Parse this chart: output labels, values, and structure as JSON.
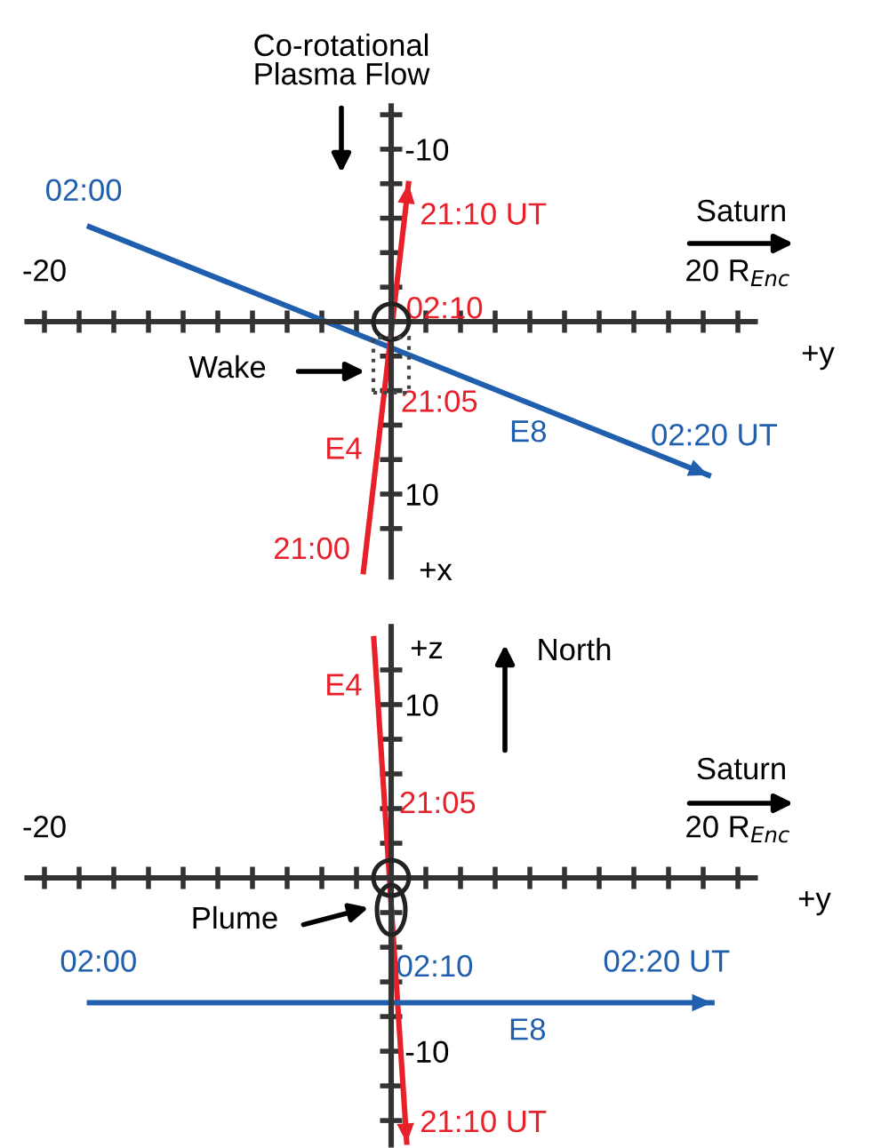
{
  "chart_data": [
    {
      "type": "line",
      "xlabel": "+y",
      "ylabel": "+x",
      "xlim": [
        -21,
        21
      ],
      "ylim": [
        14.8,
        -12.5
      ],
      "xticks": [
        {
          "value": -20,
          "label": "-20"
        },
        {
          "value": -18,
          "label": null
        },
        {
          "value": -16,
          "label": null
        },
        {
          "value": -14,
          "label": null
        },
        {
          "value": -12,
          "label": null
        },
        {
          "value": -10,
          "label": null
        },
        {
          "value": -8,
          "label": null
        },
        {
          "value": -6,
          "label": null
        },
        {
          "value": -4,
          "label": null
        },
        {
          "value": -2,
          "label": null
        },
        {
          "value": 0,
          "label": null
        },
        {
          "value": 2,
          "label": null
        },
        {
          "value": 4,
          "label": null
        },
        {
          "value": 6,
          "label": null
        },
        {
          "value": 8,
          "label": null
        },
        {
          "value": 10,
          "label": null
        },
        {
          "value": 12,
          "label": null
        },
        {
          "value": 14,
          "label": null
        },
        {
          "value": 16,
          "label": null
        },
        {
          "value": 18,
          "label": null
        },
        {
          "value": 20,
          "label": "20 R$_{Enc}$"
        }
      ],
      "yticks": [
        {
          "value": -12,
          "label": null
        },
        -10,
        {
          "value": -8,
          "label": null
        },
        {
          "value": -6,
          "label": null
        },
        {
          "value": -4,
          "label": null
        },
        {
          "value": -2,
          "label": null
        },
        {
          "value": 0,
          "label": null
        },
        {
          "value": 2,
          "label": null
        },
        {
          "value": 4,
          "label": null
        },
        {
          "value": 6,
          "label": null
        },
        {
          "value": 8,
          "label": null
        },
        10,
        {
          "value": 12,
          "label": null
        }
      ],
      "series": [
        {
          "color": "#1f5fad",
          "x": [
            -17.4,
            18.3
          ],
          "values": [
            -5.5,
            8.9
          ]
        },
        {
          "color": "#e8202a",
          "x": [
            -1.6,
            1.0
          ],
          "values": [
            14.5,
            -8.0
          ]
        }
      ],
      "annotations": [
        {
          "text": "02:00",
          "x": -17.4,
          "y": -5.5
        },
        {
          "text": "02:10",
          "x": 0,
          "y": 0.9
        },
        {
          "text": "02:20 UT",
          "x": 16.4,
          "y": 8.4
        },
        {
          "text": "E8",
          "x": 9,
          "y": 5.1
        },
        {
          "text": "21:00",
          "x": -1.5,
          "y": 13.3
        },
        {
          "text": "21:05",
          "x": -0.3,
          "y": 3.5
        },
        {
          "text": "21:10 UT",
          "x": 0.8,
          "y": -6.1
        },
        {
          "text": "E4",
          "x": -0.8,
          "y": 7.5
        },
        "Co-rotational\nPlasma Flow",
        "Saturn",
        "Wake"
      ],
      "grid": false,
      "legend": false,
      "marker": "none",
      "line_style": "solid"
    },
    {
      "type": "line",
      "xlabel": "+y",
      "ylabel": "+z",
      "xlim": [
        -21,
        21
      ],
      "ylim": [
        -15.4,
        14.5
      ],
      "xticks": [
        {
          "value": -20,
          "label": "-20"
        },
        {
          "value": -18,
          "label": null
        },
        {
          "value": -16,
          "label": null
        },
        {
          "value": -14,
          "label": null
        },
        {
          "value": -12,
          "label": null
        },
        {
          "value": -10,
          "label": null
        },
        {
          "value": -8,
          "label": null
        },
        {
          "value": -6,
          "label": null
        },
        {
          "value": -4,
          "label": null
        },
        {
          "value": -2,
          "label": null
        },
        {
          "value": 0,
          "label": null
        },
        {
          "value": 2,
          "label": null
        },
        {
          "value": 4,
          "label": null
        },
        {
          "value": 6,
          "label": null
        },
        {
          "value": 8,
          "label": null
        },
        {
          "value": 10,
          "label": null
        },
        {
          "value": 12,
          "label": null
        },
        {
          "value": 14,
          "label": null
        },
        {
          "value": 16,
          "label": null
        },
        {
          "value": 18,
          "label": null
        },
        {
          "value": 20,
          "label": "20 R$_{Enc}$"
        }
      ],
      "yticks": [
        {
          "value": -14,
          "label": null
        },
        {
          "value": -12,
          "label": null
        },
        -10,
        {
          "value": -8,
          "label": null
        },
        {
          "value": -6,
          "label": null
        },
        {
          "value": -4,
          "label": null
        },
        {
          "value": -2,
          "label": null
        },
        {
          "value": 0,
          "label": null
        },
        {
          "value": 2,
          "label": null
        },
        {
          "value": 4,
          "label": null
        },
        {
          "value": 6,
          "label": null
        },
        {
          "value": 8,
          "label": null
        },
        10,
        {
          "value": 12,
          "label": null
        }
      ],
      "series": [
        {
          "color": "#e8202a",
          "x": [
            -1.0,
            0.9
          ],
          "values": [
            13.8,
            -15.3
          ]
        },
        {
          "color": "#1f5fad",
          "x": [
            -17.4,
            18.5
          ],
          "values": [
            -7.2,
            -7.2
          ]
        }
      ],
      "annotations": [
        {
          "text": "E4",
          "x": -0.8,
          "y": 11
        },
        {
          "text": "21:05",
          "x": -0.4,
          "y": 4.2
        },
        {
          "text": "21:10 UT",
          "x": 0.8,
          "y": -14.2
        },
        {
          "text": "02:00",
          "x": -17.4,
          "y": -7.2
        },
        {
          "text": "02:10",
          "x": 0,
          "y": -7.2
        },
        {
          "text": "02:20 UT",
          "x": 16.5,
          "y": -7.2
        },
        {
          "text": "E8",
          "x": 9,
          "y": -7.2
        },
        "North",
        "Saturn",
        "Plume"
      ],
      "grid": false,
      "legend": false,
      "marker": "none",
      "line_style": "solid"
    }
  ]
}
